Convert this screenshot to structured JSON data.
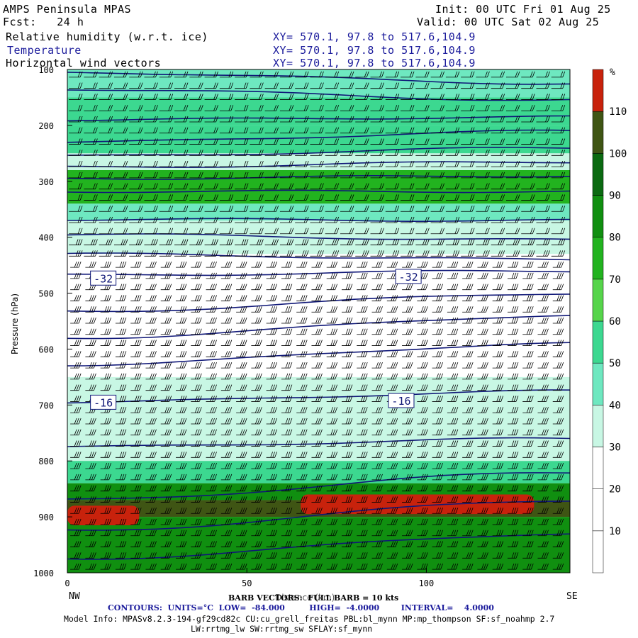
{
  "header": {
    "title": "AMPS Peninsula MPAS",
    "init": "Init: 00 UTC Fri 01 Aug 25",
    "fcst": "Fcst:   24 h",
    "valid": "Valid: 00 UTC Sat 02 Aug 25",
    "fields": [
      {
        "name": "Relative humidity (w.r.t. ice)",
        "xy": "XY= 570.1, 97.8 to 517.6,104.9"
      },
      {
        "name": "Temperature",
        "xy": "XY= 570.1, 97.8 to 517.6,104.9"
      },
      {
        "name": "Horizontal wind vectors",
        "xy": "XY= 570.1, 97.8 to 517.6,104.9"
      }
    ]
  },
  "chart_data": {
    "type": "heatmap",
    "title": "AMPS Peninsula MPAS",
    "xlabel": "Distance (km)",
    "ylabel": "Pressure (hPa)",
    "xlim": [
      0,
      140
    ],
    "ylim": [
      1000,
      100
    ],
    "x_ticks": [
      0,
      50,
      100
    ],
    "y_ticks": [
      100,
      200,
      300,
      400,
      500,
      600,
      700,
      800,
      900,
      1000
    ],
    "x_end_labels": {
      "left": "NW",
      "right": "SE"
    },
    "colorbar": {
      "unit": "%",
      "levels": [
        10,
        20,
        30,
        40,
        50,
        60,
        70,
        80,
        90,
        100,
        110
      ],
      "colors": [
        "#ffffff",
        "#ffffff",
        "#ffffff",
        "#c8f7e4",
        "#6ee8c0",
        "#3cd890",
        "#56d54b",
        "#22b31f",
        "#108f10",
        "#0b6a11",
        "#3f5514",
        "#c8220c"
      ]
    },
    "rh_bands": [
      {
        "p_top": 100,
        "p_bot": 150,
        "rh": 45
      },
      {
        "p_top": 150,
        "p_bot": 200,
        "rh": 55
      },
      {
        "p_top": 200,
        "p_bot": 250,
        "rh": 50
      },
      {
        "p_top": 250,
        "p_bot": 280,
        "rh": 38
      },
      {
        "p_top": 280,
        "p_bot": 340,
        "rh": 72
      },
      {
        "p_top": 340,
        "p_bot": 370,
        "rh": 45
      },
      {
        "p_top": 370,
        "p_bot": 430,
        "rh": 35
      },
      {
        "p_top": 430,
        "p_bot": 650,
        "rh": 20
      },
      {
        "p_top": 650,
        "p_bot": 800,
        "rh": 30
      },
      {
        "p_top": 800,
        "p_bot": 840,
        "rh": 55
      },
      {
        "p_top": 840,
        "p_bot": 870,
        "rh": 88
      },
      {
        "p_top": 870,
        "p_bot": 900,
        "rh": 100
      },
      {
        "p_top": 900,
        "p_bot": 1000,
        "rh": 80
      }
    ],
    "rh_maxima": [
      {
        "x_start": 0,
        "x_end": 20,
        "p_top": 880,
        "p_bot": 915,
        "rh": 112
      },
      {
        "x_start": 65,
        "x_end": 130,
        "p_top": 860,
        "p_bot": 895,
        "rh": 112
      }
    ],
    "temperature_contours": {
      "units": "°C",
      "low": -84,
      "high": -4,
      "interval": 4,
      "labels": [
        {
          "value": "-32",
          "x_km": 10,
          "p": 473
        },
        {
          "value": "-32",
          "x_km": 95,
          "p": 470
        },
        {
          "value": "-16",
          "x_km": 10,
          "p": 695
        },
        {
          "value": "-16",
          "x_km": 93,
          "p": 692
        }
      ],
      "lines_p_left": [
        105,
        135,
        190,
        230,
        255,
        275,
        295,
        318,
        368,
        395,
        430,
        468,
        533,
        580,
        628,
        695,
        775,
        870,
        925,
        975
      ],
      "lines_p_right": [
        125,
        155,
        185,
        210,
        240,
        265,
        290,
        318,
        370,
        405,
        440,
        460,
        500,
        540,
        590,
        675,
        760,
        820,
        870,
        930
      ]
    },
    "barb_vectors": "BARB VECTORS:  FULL BARB = 10 kts"
  },
  "footer": {
    "contours_label": "CONTOURS:  UNITS=°C  LOW=  -84.000         HIGH=  -4.0000        INTERVAL=    4.0000",
    "barb_label": "BARB VECTORS:  FULL BARB = 10 kts",
    "model_info": "Model Info: MPASv8.2.3-194-gf29cd82c CU:cu_grell_freitas PBL:bl_mynn MP:mp_thompson SF:sf_noahmp 2.7",
    "model_info2": "LW:rrtmg_lw SW:rrtmg_sw SFLAY:sf_mynn"
  }
}
